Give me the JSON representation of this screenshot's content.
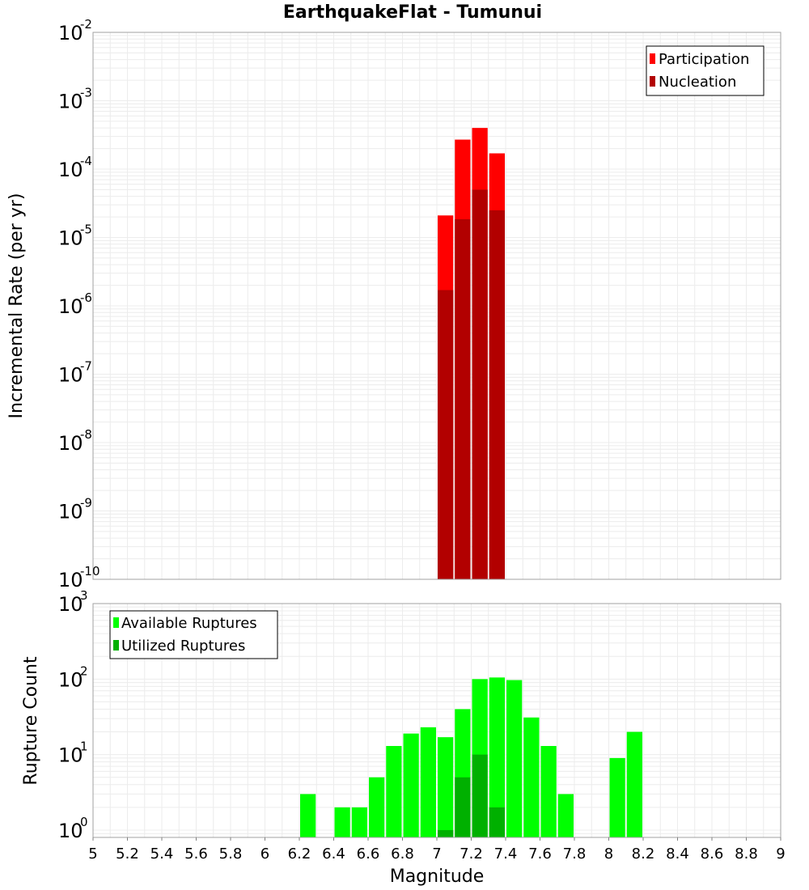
{
  "colors": {
    "participation": "#ff0000",
    "nucleation": "#b20000",
    "available": "#00ff00",
    "utilized": "#00b000",
    "grid": "#ececec",
    "frame": "#a0a0a0"
  },
  "chart_data": [
    {
      "type": "bar",
      "title": "EarthquakeFlat - Tumunui",
      "xlabel": "",
      "ylabel": "Incremental Rate (per yr)",
      "xlim": [
        5,
        9
      ],
      "ylim": [
        1e-10,
        0.01
      ],
      "y_scale": "log",
      "y_ticks": [
        {
          "base": "10",
          "exp": "-10",
          "value": 1e-10
        },
        {
          "base": "10",
          "exp": "-9",
          "value": 1e-09
        },
        {
          "base": "10",
          "exp": "-8",
          "value": 1e-08
        },
        {
          "base": "10",
          "exp": "-7",
          "value": 1e-07
        },
        {
          "base": "10",
          "exp": "-6",
          "value": 1e-06
        },
        {
          "base": "10",
          "exp": "-5",
          "value": 1e-05
        },
        {
          "base": "10",
          "exp": "-4",
          "value": 0.0001
        },
        {
          "base": "10",
          "exp": "-3",
          "value": 0.001
        },
        {
          "base": "10",
          "exp": "-2",
          "value": 0.01
        }
      ],
      "bin_width": 0.1,
      "legend_position": "top-right",
      "grid": true,
      "series": [
        {
          "name": "Participation",
          "x": [
            7.05,
            7.15,
            7.25,
            7.35
          ],
          "values": [
            2.1e-05,
            0.00027,
            0.0004,
            0.00017
          ]
        },
        {
          "name": "Nucleation",
          "x": [
            7.05,
            7.15,
            7.25,
            7.35
          ],
          "values": [
            1.7e-06,
            1.85e-05,
            5e-05,
            2.5e-05
          ]
        }
      ]
    },
    {
      "type": "bar",
      "title": "",
      "xlabel": "Magnitude",
      "ylabel": "Rupture Count",
      "xlim": [
        5,
        9
      ],
      "ylim": [
        0.8,
        1000
      ],
      "y_scale": "log",
      "y_ticks": [
        {
          "base": "10",
          "exp": "0",
          "value": 1
        },
        {
          "base": "10",
          "exp": "1",
          "value": 10
        },
        {
          "base": "10",
          "exp": "2",
          "value": 100
        },
        {
          "base": "10",
          "exp": "3",
          "value": 1000
        }
      ],
      "x_tick_labels": [
        "5",
        "5.2",
        "5.4",
        "5.6",
        "5.8",
        "6",
        "6.2",
        "6.4",
        "6.6",
        "6.8",
        "7",
        "7.2",
        "7.4",
        "7.6",
        "7.8",
        "8",
        "8.2",
        "8.4",
        "8.6",
        "8.8",
        "9"
      ],
      "bin_width": 0.1,
      "legend_position": "top-left",
      "grid": true,
      "series": [
        {
          "name": "Available Ruptures",
          "x": [
            6.25,
            6.45,
            6.55,
            6.65,
            6.75,
            6.85,
            6.95,
            7.05,
            7.15,
            7.25,
            7.35,
            7.45,
            7.55,
            7.65,
            7.75,
            8.05,
            8.15
          ],
          "values": [
            3,
            2,
            2,
            5,
            13,
            19,
            23,
            17,
            40,
            100,
            105,
            97,
            31,
            13,
            3,
            9,
            20
          ]
        },
        {
          "name": "Utilized Ruptures",
          "x": [
            7.05,
            7.15,
            7.25,
            7.35
          ],
          "values": [
            1,
            5,
            10,
            2
          ]
        }
      ]
    }
  ]
}
